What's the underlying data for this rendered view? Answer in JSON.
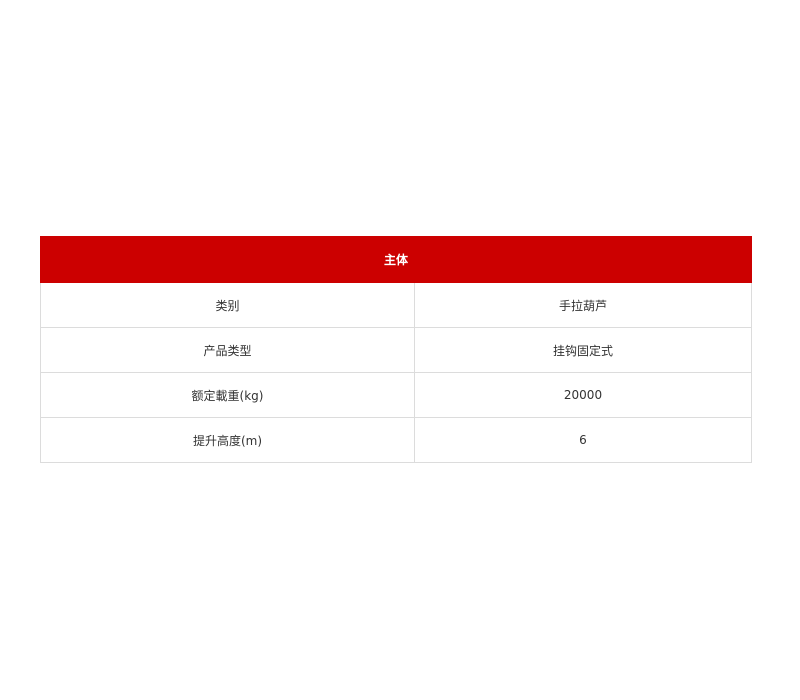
{
  "table": {
    "header": "主体",
    "rows": [
      {
        "label": "类别",
        "value": "手拉葫芦"
      },
      {
        "label": "产品类型",
        "value": "挂钩固定式"
      },
      {
        "label": "额定載重(kg)",
        "value": "20000"
      },
      {
        "label": "提升高度(m)",
        "value": "6"
      }
    ]
  },
  "colors": {
    "header_bg": "#cc0000",
    "border": "#dcdcdc"
  }
}
